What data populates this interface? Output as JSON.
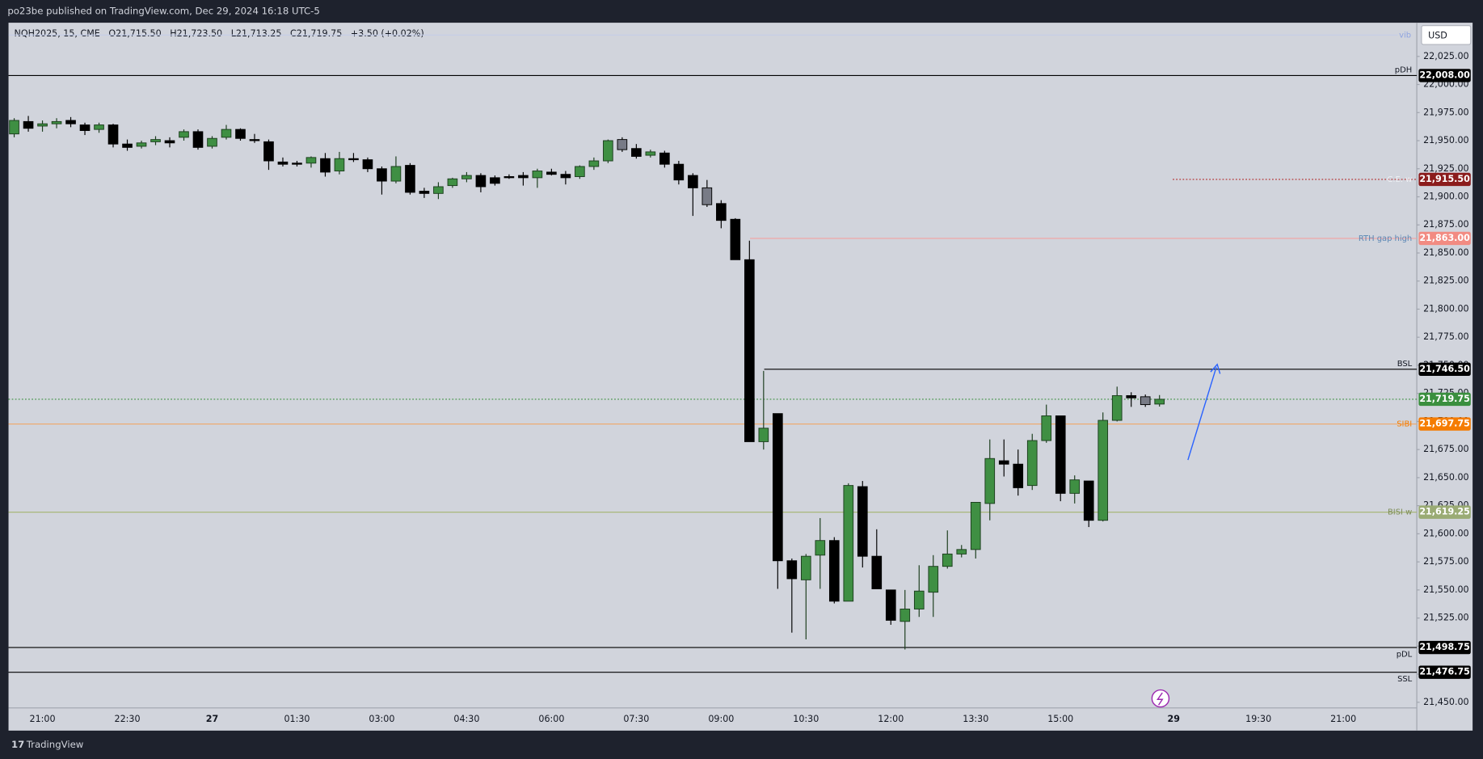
{
  "header": "po23be published on TradingView.com, Dec 29, 2024 16:18 UTC-5",
  "footer": "TradingView",
  "currency": "USD",
  "chart_data": {
    "type": "candlestick",
    "legend": {
      "symbol": "NQH2025, 15, CME",
      "open": "O21,715.50",
      "high": "H21,723.50",
      "low": "L21,713.25",
      "close": "C21,719.75",
      "change": "+3.50 (+0.02%)"
    },
    "indicator_label": "vib",
    "categories": [
      null,
      null,
      "21:00",
      null,
      null,
      null,
      null,
      null,
      "22:30",
      null,
      null,
      null,
      null,
      null,
      "27",
      null,
      null,
      null,
      null,
      null,
      "01:30",
      null,
      null,
      null,
      null,
      null,
      "03:00",
      null,
      null,
      null,
      null,
      null,
      "04:30",
      null,
      null,
      null,
      null,
      null,
      "06:00",
      null,
      null,
      null,
      null,
      null,
      "07:30",
      null,
      null,
      null,
      null,
      null,
      "09:00",
      null,
      null,
      null,
      null,
      null,
      "10:30",
      null,
      null,
      null,
      null,
      null,
      "12:00",
      null,
      null,
      null,
      null,
      null,
      "13:30",
      null,
      null,
      null,
      null,
      null,
      "15:00",
      null,
      null,
      null,
      null,
      null,
      null,
      null,
      "29",
      null,
      null,
      null,
      null,
      null,
      "19:30",
      null,
      null,
      null,
      null,
      null,
      "21:00",
      null,
      null,
      null
    ],
    "open": [
      21956,
      21967,
      21963,
      21965,
      21968,
      21964,
      21960,
      21964,
      21947,
      21945,
      21949,
      21950,
      21953,
      21958,
      21945,
      21953,
      21960,
      21951,
      21949,
      21931,
      21930,
      21930,
      21934,
      21923,
      21934,
      21933,
      21925,
      21914,
      21928,
      21905,
      21903,
      21910,
      21916,
      21919,
      21917,
      21918,
      21919,
      21917,
      21922,
      21920,
      21918,
      21927,
      21932,
      21951,
      21943,
      21937,
      21939,
      21929,
      21919,
      21908,
      21894,
      21880,
      21844,
      21682,
      21707,
      21576,
      21559,
      21581,
      21594,
      21540,
      21642,
      21580,
      21550,
      21522,
      21533,
      21548,
      21571,
      21582,
      21586,
      21627,
      21665,
      21662,
      21643,
      21683,
      21705,
      21636,
      21647,
      21612,
      21701,
      21723,
      21722,
      21715.5,
      null,
      null,
      null,
      null,
      null,
      null,
      null,
      null,
      null,
      null,
      null,
      null,
      null,
      null,
      null,
      null
    ],
    "high": [
      21970,
      21972,
      21968,
      21970,
      21971,
      21966,
      21966,
      21965,
      21951,
      21950,
      21954,
      21953,
      21960,
      21960,
      21954,
      21964,
      21961,
      21956,
      21951,
      21935,
      21932,
      21936,
      21939,
      21940,
      21939,
      21935,
      21927,
      21936,
      21930,
      21908,
      21913,
      21917,
      21922,
      21921,
      21919,
      21920,
      21922,
      21925,
      21925,
      21923,
      21928,
      21935,
      21951,
      21953,
      21947,
      21942,
      21941,
      21932,
      21921,
      21915,
      21897,
      21881,
      21861,
      21745,
      21707,
      21578,
      21582,
      21614,
      21597,
      21645,
      21647,
      21604,
      21550,
      21550,
      21572,
      21581,
      21603,
      21590,
      21628,
      21684,
      21684,
      21675,
      21689,
      21715,
      21705,
      21652,
      21647,
      21708,
      21731,
      21726,
      21724,
      21723.5,
      null,
      null,
      null,
      null,
      null,
      null,
      null,
      null,
      null,
      null,
      null,
      null,
      null,
      null,
      null,
      null
    ],
    "low": [
      21953,
      21958,
      21958,
      21961,
      21962,
      21955,
      21957,
      21944,
      21941,
      21943,
      21946,
      21944,
      21950,
      21942,
      21943,
      21951,
      21950,
      21948,
      21924,
      21927,
      21927,
      21926,
      21918,
      21920,
      21931,
      21922,
      21902,
      21912,
      21902,
      21899,
      21898,
      21908,
      21913,
      21904,
      21910,
      21916,
      21910,
      21908,
      21919,
      21911,
      21916,
      21924,
      21930,
      21940,
      21934,
      21935,
      21926,
      21911,
      21883,
      21891,
      21872,
      21844,
      21682,
      21675,
      21551,
      21512,
      21506,
      21551,
      21538,
      21540,
      21570,
      21551,
      21519,
      21497,
      21526,
      21526,
      21569,
      21579,
      21578,
      21612,
      21651,
      21634,
      21639,
      21681,
      21629,
      21627,
      21606,
      21611,
      21700,
      21713,
      21713,
      21713.25,
      null,
      null,
      null,
      null,
      null,
      null,
      null,
      null,
      null,
      null,
      null,
      null,
      null,
      null,
      null,
      null
    ],
    "close": [
      21968,
      21961,
      21965,
      21967,
      21965,
      21959,
      21964,
      21947,
      21944,
      21948,
      21951,
      21948,
      21958,
      21944,
      21952,
      21960,
      21952,
      21950,
      21932,
      21929,
      21929,
      21935,
      21922,
      21934,
      21933,
      21925,
      21914,
      21927,
      21904,
      21903,
      21909,
      21916,
      21919,
      21909,
      21912,
      21917,
      21917,
      21923,
      21920,
      21917,
      21927,
      21932,
      21950,
      21942,
      21936,
      21940,
      21929,
      21915,
      21908,
      21893,
      21879,
      21844,
      21682,
      21694,
      21576,
      21560,
      21580,
      21594,
      21540,
      21643,
      21580,
      21551,
      21523,
      21533,
      21549,
      21571,
      21582,
      21586,
      21628,
      21667,
      21662,
      21641,
      21683,
      21705,
      21636,
      21648,
      21612,
      21701,
      21723,
      21721,
      21715,
      21719.75,
      null,
      null,
      null,
      null,
      null,
      null,
      null,
      null,
      null,
      null,
      null,
      null,
      null,
      null,
      null,
      null
    ],
    "colors": [
      "#3f8f43",
      "#000000",
      "#3f8f43",
      "#3f8f43",
      "#000000",
      "#000000",
      "#3f8f43",
      "#000000",
      "#000000",
      "#3f8f43",
      "#3f8f43",
      "#000000",
      "#3f8f43",
      "#000000",
      "#3f8f43",
      "#3f8f43",
      "#000000",
      "#000000",
      "#000000",
      "#000000",
      "#000000",
      "#3f8f43",
      "#000000",
      "#3f8f43",
      "#000000",
      "#000000",
      "#000000",
      "#3f8f43",
      "#000000",
      "#000000",
      "#3f8f43",
      "#3f8f43",
      "#3f8f43",
      "#000000",
      "#000000",
      "#000000",
      "#000000",
      "#3f8f43",
      "#000000",
      "#000000",
      "#3f8f43",
      "#3f8f43",
      "#3f8f43",
      "#787b86",
      "#000000",
      "#3f8f43",
      "#000000",
      "#000000",
      "#000000",
      "#787b86",
      "#000000",
      "#000000",
      "#000000",
      "#3f8f43",
      "#000000",
      "#000000",
      "#3f8f43",
      "#3f8f43",
      "#000000",
      "#3f8f43",
      "#000000",
      "#000000",
      "#000000",
      "#3f8f43",
      "#3f8f43",
      "#3f8f43",
      "#3f8f43",
      "#3f8f43",
      "#3f8f43",
      "#3f8f43",
      "#000000",
      "#000000",
      "#3f8f43",
      "#3f8f43",
      "#000000",
      "#3f8f43",
      "#000000",
      "#3f8f43",
      "#3f8f43",
      "#000000",
      "#787b86",
      "#3f8f43",
      null,
      null,
      null,
      null,
      null,
      null,
      null,
      null,
      null,
      null,
      null,
      null,
      null,
      null,
      null,
      null
    ],
    "ylim": [
      21445,
      22055
    ],
    "yticks": [
      {
        "value": 22025,
        "label": "22,025.00"
      },
      {
        "value": 22000,
        "label": "22,000.00"
      },
      {
        "value": 21975,
        "label": "21,975.00"
      },
      {
        "value": 21950,
        "label": "21,950.00"
      },
      {
        "value": 21925,
        "label": "21,925.00"
      },
      {
        "value": 21900,
        "label": "21,900.00"
      },
      {
        "value": 21875,
        "label": "21,875.00"
      },
      {
        "value": 21850,
        "label": "21,850.00"
      },
      {
        "value": 21825,
        "label": "21,825.00"
      },
      {
        "value": 21800,
        "label": "21,800.00"
      },
      {
        "value": 21775,
        "label": "21,775.00"
      },
      {
        "value": 21750,
        "label": "21,750.00"
      },
      {
        "value": 21725,
        "label": "21,725.00"
      },
      {
        "value": 21700,
        "label": "21,700.00"
      },
      {
        "value": 21675,
        "label": "21,675.00"
      },
      {
        "value": 21650,
        "label": "21,650.00"
      },
      {
        "value": 21625,
        "label": "21,625.00"
      },
      {
        "value": 21600,
        "label": "21,600.00"
      },
      {
        "value": 21575,
        "label": "21,575.00"
      },
      {
        "value": 21550,
        "label": "21,550.00"
      },
      {
        "value": 21525,
        "label": "21,525.00"
      },
      {
        "value": 21500,
        "label": "21,500.00"
      },
      {
        "value": 21475,
        "label": "21,475.00"
      },
      {
        "value": 21450,
        "label": "21,450.00"
      }
    ],
    "grid": false,
    "levels": [
      {
        "name": "pDH",
        "value": 22008,
        "label": "22,008.00",
        "color": "#000000",
        "tag_color": "#000000",
        "name_color": "#131722",
        "style": "solid"
      },
      {
        "name": "C.E. w",
        "value": 21915.5,
        "label": "21,915.50",
        "color": "#b22222",
        "tag_color": "#8b1c1c",
        "name_color": "#eef0f4",
        "style": "dotted"
      },
      {
        "name": "RTH gap high",
        "value": 21863,
        "label": "21,863.00",
        "color": "#f2a2a2",
        "tag_color": "#f28b82",
        "name_color": "#5b87b5",
        "style": "solid"
      },
      {
        "name": "BSL",
        "value": 21746.5,
        "label": "21,746.50",
        "color": "#000000",
        "tag_color": "#000000",
        "name_color": "#131722",
        "style": "solid"
      },
      {
        "value": 21719.75,
        "label": "21,719.75",
        "color": "#3a8f3e",
        "tag_color": "#3a8f3e",
        "style": "dotted"
      },
      {
        "name": "SIBI",
        "value": 21697.75,
        "label": "21,697.75",
        "color": "#f0a868",
        "tag_color": "#f57c00",
        "name_color": "#f57c00",
        "style": "solid"
      },
      {
        "name": "BISI w",
        "value": 21619.25,
        "label": "21,619.25",
        "color": "#a9b77a",
        "tag_color": "#9aab74",
        "name_color": "#7d8d55",
        "style": "solid"
      },
      {
        "name": "pDL",
        "value": 21498.75,
        "label": "21,498.75",
        "color": "#000000",
        "tag_color": "#000000",
        "name_color": "#131722",
        "style": "solid"
      },
      {
        "name": "SSL",
        "value": 21476.75,
        "label": "21,476.75",
        "color": "#000000",
        "tag_color": "#000000",
        "name_color": "#131722",
        "style": "solid"
      }
    ]
  }
}
